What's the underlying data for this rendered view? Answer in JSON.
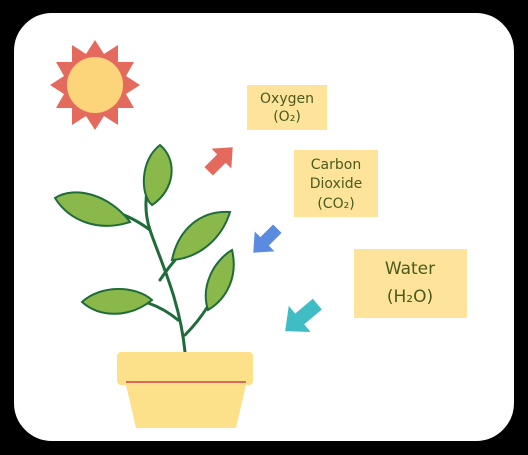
{
  "labels": [
    {
      "lines": [
        "Oxygen",
        "(O₂)"
      ]
    },
    {
      "lines": [
        "Carbon",
        "Dioxide",
        "(CO₂)"
      ]
    },
    {
      "lines": [
        "Water",
        "(H₂O)"
      ]
    }
  ]
}
